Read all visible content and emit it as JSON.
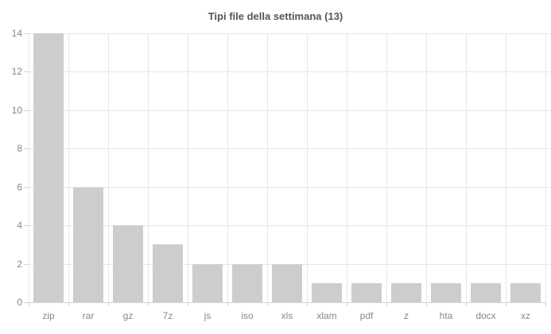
{
  "chart_data": {
    "type": "bar",
    "title": "Tipi file della settimana (13)",
    "categories": [
      "zip",
      "rar",
      "gz",
      "7z",
      "js",
      "iso",
      "xls",
      "xlam",
      "pdf",
      "z",
      "hta",
      "docx",
      "xz"
    ],
    "values": [
      14,
      6,
      4,
      3,
      2,
      2,
      2,
      1,
      1,
      1,
      1,
      1,
      1
    ],
    "xlabel": "",
    "ylabel": "",
    "ylim": [
      0,
      14
    ],
    "yticks": [
      0,
      2,
      4,
      6,
      8,
      10,
      12,
      14
    ],
    "grid": true,
    "legend": "none",
    "colors": {
      "bar": "#cdcdcd",
      "grid": "#e7e7e7",
      "axis": "#d4d4d4",
      "labels": "#888888",
      "title": "#555555"
    }
  }
}
